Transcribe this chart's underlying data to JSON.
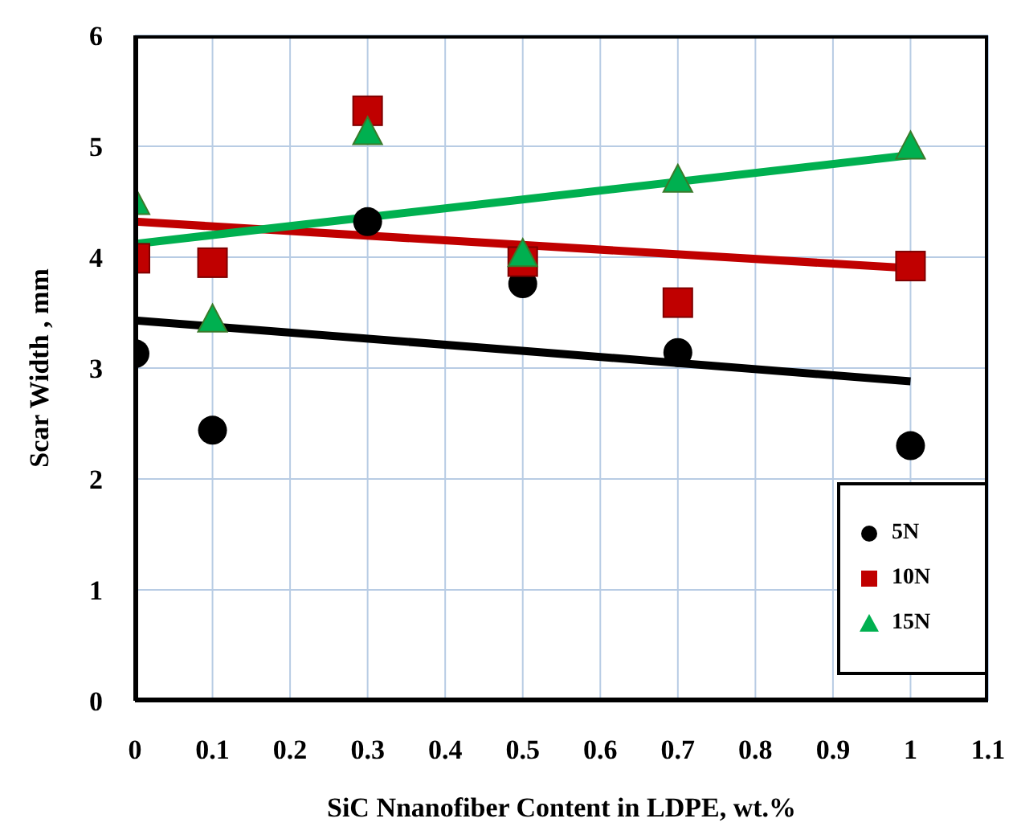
{
  "chart_data": {
    "type": "scatter",
    "xlabel": "SiC Nnanofiber Content in LDPE, wt.%",
    "ylabel": "Scar Width , mm",
    "x": [
      0,
      0.1,
      0.3,
      0.5,
      0.7,
      1
    ],
    "series": [
      {
        "name": "5N",
        "color": "#000000",
        "marker": "circle",
        "values": [
          3.13,
          2.44,
          4.32,
          3.76,
          3.14,
          2.3
        ]
      },
      {
        "name": "10N",
        "color": "#c00000",
        "marker": "square",
        "values": [
          3.99,
          3.95,
          5.32,
          3.96,
          3.59,
          3.92
        ]
      },
      {
        "name": "15N",
        "color": "#00b050",
        "marker": "triangle",
        "values": [
          4.49,
          3.43,
          5.12,
          4.02,
          4.69,
          4.99
        ]
      },
      {
        "type": "line",
        "color": "#000000",
        "values": [
          3.43,
          null,
          null,
          null,
          null,
          2.88
        ]
      },
      {
        "type": "line",
        "color": "#c00000",
        "values": [
          4.32,
          null,
          null,
          null,
          null,
          3.9
        ]
      },
      {
        "type": "line",
        "color": "#00b050",
        "values": [
          4.12,
          null,
          null,
          null,
          null,
          4.92
        ]
      }
    ],
    "xlim": [
      0,
      1.1
    ],
    "xticks": [
      0,
      0.1,
      0.2,
      0.3,
      0.4,
      0.5,
      0.6,
      0.7,
      0.8,
      0.9,
      1,
      1.1
    ],
    "ylim": [
      0,
      6
    ],
    "yticks": [
      0,
      1,
      2,
      3,
      4,
      5,
      6
    ],
    "grid": true,
    "legend": "bottom right"
  }
}
